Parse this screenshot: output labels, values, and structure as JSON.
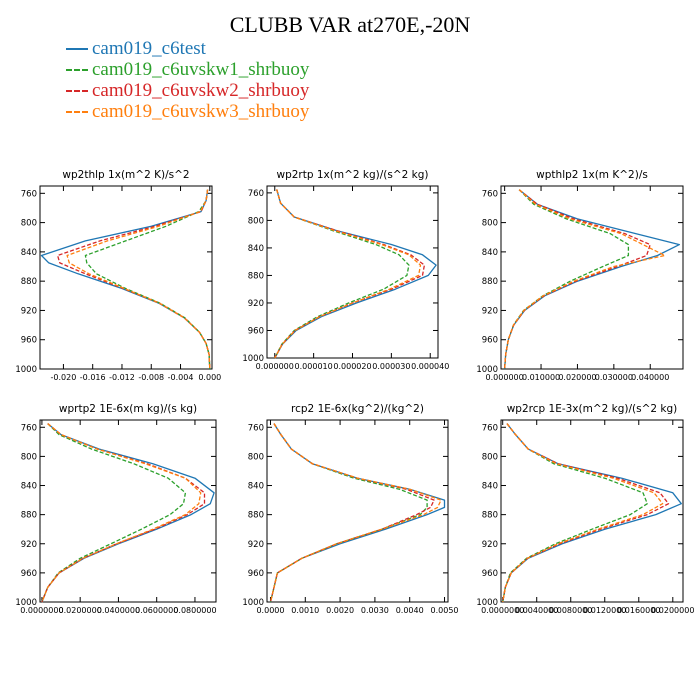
{
  "figure": {
    "title": "CLUBB VAR at270E,-20N"
  },
  "legend": [
    {
      "label": "cam019_c6test",
      "color": "#1f77b4",
      "dash": "solid"
    },
    {
      "label": "cam019_c6uvskw1_shrbuoy",
      "color": "#2ca02c",
      "dash": "dashed"
    },
    {
      "label": "cam019_c6uvskw2_shrbuoy",
      "color": "#d62728",
      "dash": "dashed"
    },
    {
      "label": "cam019_c6uvskw3_shrbuoy",
      "color": "#ff7f0e",
      "dash": "dashed"
    }
  ],
  "chart_data": [
    {
      "type": "line",
      "title": "wp2thlp   1x(m^2 K)/s^2",
      "ylim": [
        1000,
        750
      ],
      "yticks": [
        760,
        800,
        840,
        880,
        920,
        960,
        1000
      ],
      "ytick_labels": [
        "760",
        "800",
        "840",
        "880",
        "920",
        "960",
        "1000"
      ],
      "xlim": [
        -0.0232,
        0.0003
      ],
      "xticks": [
        -0.02,
        -0.016,
        -0.012,
        -0.008,
        -0.004,
        0.0
      ],
      "xtick_labels": [
        "-0.020",
        "-0.016",
        "-0.012",
        "-0.008",
        "-0.004",
        "0.000"
      ],
      "y": [
        755,
        770,
        785,
        805,
        825,
        845,
        855,
        870,
        890,
        910,
        930,
        950,
        965,
        980,
        1000
      ],
      "series": [
        {
          "name": "cam019_c6test",
          "values": [
            -0.0003,
            -0.0005,
            -0.0012,
            -0.008,
            -0.017,
            -0.023,
            -0.022,
            -0.018,
            -0.012,
            -0.007,
            -0.0035,
            -0.0014,
            -0.0005,
            -0.0001,
            0
          ]
        },
        {
          "name": "cam019_c6uvskw1_shrbuoy",
          "values": [
            -0.0003,
            -0.0005,
            -0.0015,
            -0.006,
            -0.0115,
            -0.017,
            -0.0168,
            -0.0155,
            -0.0115,
            -0.0068,
            -0.0034,
            -0.0014,
            -0.0005,
            -0.0001,
            0
          ]
        },
        {
          "name": "cam019_c6uvskw2_shrbuoy",
          "values": [
            -0.0003,
            -0.0005,
            -0.0012,
            -0.0075,
            -0.015,
            -0.0208,
            -0.0205,
            -0.017,
            -0.0118,
            -0.0069,
            -0.0035,
            -0.0014,
            -0.0005,
            -0.0001,
            0
          ]
        },
        {
          "name": "cam019_c6uvskw3_shrbuoy",
          "values": [
            -0.0003,
            -0.0005,
            -0.0013,
            -0.007,
            -0.014,
            -0.0195,
            -0.0192,
            -0.0165,
            -0.0117,
            -0.0069,
            -0.0035,
            -0.0014,
            -0.0005,
            -0.0001,
            0
          ]
        }
      ]
    },
    {
      "type": "line",
      "title": "wp2rtp   1x(m^2 kg)/(s^2 kg)",
      "ylim": [
        1000,
        750
      ],
      "yticks": [
        760,
        800,
        840,
        880,
        920,
        960,
        1000
      ],
      "ytick_labels": [
        "760",
        "800",
        "840",
        "880",
        "920",
        "960",
        "1000"
      ],
      "xlim": [
        -2e-06,
        4.2e-05
      ],
      "xticks": [
        0,
        1e-05,
        2e-05,
        3e-05,
        4e-05
      ],
      "xtick_labels": [
        "0.000000",
        "0.000010",
        "0.000020",
        "0.000030",
        "0.000040"
      ],
      "y": [
        755,
        775,
        795,
        815,
        835,
        850,
        865,
        880,
        900,
        920,
        940,
        960,
        980,
        1000
      ],
      "series": [
        {
          "name": "cam019_c6test",
          "values": [
            5e-07,
            1.5e-06,
            5e-06,
            1.6e-05,
            3e-05,
            3.8e-05,
            4.15e-05,
            3.95e-05,
            3.1e-05,
            2.1e-05,
            1.2e-05,
            5.5e-06,
            2e-06,
            0
          ]
        },
        {
          "name": "cam019_c6uvskw1_shrbuoy",
          "values": [
            5e-07,
            1.5e-06,
            5e-06,
            1.5e-05,
            2.6e-05,
            3.2e-05,
            3.45e-05,
            3.4e-05,
            2.8e-05,
            1.9e-05,
            1.1e-05,
            5e-06,
            1.8e-06,
            0
          ]
        },
        {
          "name": "cam019_c6uvskw2_shrbuoy",
          "values": [
            5e-07,
            1.5e-06,
            5e-06,
            1.6e-05,
            2.8e-05,
            3.5e-05,
            3.85e-05,
            3.8e-05,
            3e-05,
            2e-05,
            1.15e-05,
            5.2e-06,
            1.9e-06,
            0
          ]
        },
        {
          "name": "cam019_c6uvskw3_shrbuoy",
          "values": [
            5e-07,
            1.5e-06,
            5e-06,
            1.55e-05,
            2.75e-05,
            3.45e-05,
            3.75e-05,
            3.7e-05,
            2.95e-05,
            2e-05,
            1.15e-05,
            5.2e-06,
            1.9e-06,
            0
          ]
        }
      ]
    },
    {
      "type": "line",
      "title": "wpthlp2   1x(m K^2)/s",
      "ylim": [
        1000,
        750
      ],
      "yticks": [
        760,
        800,
        840,
        880,
        920,
        960,
        1000
      ],
      "ytick_labels": [
        "760",
        "800",
        "840",
        "880",
        "920",
        "960",
        "1000"
      ],
      "xlim": [
        -0.001,
        0.049
      ],
      "xticks": [
        0,
        0.01,
        0.02,
        0.03,
        0.04
      ],
      "xtick_labels": [
        "0.000000",
        "0.010000",
        "0.020000",
        "0.030000",
        "0.040000"
      ],
      "y": [
        755,
        775,
        795,
        815,
        830,
        845,
        860,
        880,
        900,
        920,
        940,
        960,
        980,
        1000
      ],
      "series": [
        {
          "name": "cam019_c6test",
          "values": [
            0.004,
            0.009,
            0.02,
            0.036,
            0.048,
            0.042,
            0.032,
            0.02,
            0.011,
            0.0055,
            0.0025,
            0.001,
            0.0003,
            0
          ]
        },
        {
          "name": "cam019_c6uvskw1_shrbuoy",
          "values": [
            0.004,
            0.008,
            0.017,
            0.029,
            0.034,
            0.034,
            0.027,
            0.018,
            0.0105,
            0.0052,
            0.0024,
            0.001,
            0.0003,
            0
          ]
        },
        {
          "name": "cam019_c6uvskw2_shrbuoy",
          "values": [
            0.004,
            0.009,
            0.019,
            0.033,
            0.04,
            0.039,
            0.031,
            0.0195,
            0.0108,
            0.0054,
            0.0025,
            0.001,
            0.0003,
            0
          ]
        },
        {
          "name": "cam019_c6uvskw3_shrbuoy",
          "values": [
            0.004,
            0.0085,
            0.018,
            0.032,
            0.038,
            0.044,
            0.03,
            0.019,
            0.0106,
            0.0053,
            0.0024,
            0.001,
            0.0003,
            0
          ]
        }
      ]
    },
    {
      "type": "line",
      "title": "wprtp2   1E-6x(m kg)/(s kg)",
      "ylim": [
        1000,
        750
      ],
      "yticks": [
        760,
        800,
        840,
        880,
        920,
        960,
        1000
      ],
      "ytick_labels": [
        "760",
        "800",
        "840",
        "880",
        "920",
        "960",
        "1000"
      ],
      "xlim": [
        -0.001,
        0.091
      ],
      "xticks": [
        0,
        0.02,
        0.04,
        0.06,
        0.08
      ],
      "xtick_labels": [
        "0.0000000",
        "0.0200000",
        "0.0400000",
        "0.0600000",
        "0.0800000"
      ],
      "y": [
        755,
        770,
        790,
        810,
        830,
        850,
        865,
        880,
        900,
        920,
        940,
        960,
        980,
        1000
      ],
      "series": [
        {
          "name": "cam019_c6test",
          "values": [
            0.003,
            0.01,
            0.03,
            0.058,
            0.08,
            0.09,
            0.088,
            0.078,
            0.06,
            0.04,
            0.022,
            0.009,
            0.003,
            0
          ]
        },
        {
          "name": "cam019_c6uvskw1_shrbuoy",
          "values": [
            0.003,
            0.009,
            0.026,
            0.048,
            0.066,
            0.075,
            0.074,
            0.067,
            0.052,
            0.036,
            0.02,
            0.0085,
            0.003,
            0
          ]
        },
        {
          "name": "cam019_c6uvskw2_shrbuoy",
          "values": [
            0.003,
            0.01,
            0.029,
            0.055,
            0.075,
            0.085,
            0.085,
            0.076,
            0.059,
            0.039,
            0.0215,
            0.009,
            0.003,
            0
          ]
        },
        {
          "name": "cam019_c6uvskw3_shrbuoy",
          "values": [
            0.003,
            0.01,
            0.029,
            0.054,
            0.075,
            0.083,
            0.082,
            0.075,
            0.058,
            0.039,
            0.0215,
            0.009,
            0.003,
            0
          ]
        }
      ]
    },
    {
      "type": "line",
      "title": "rcp2   1E-6x(kg^2)/(kg^2)",
      "ylim": [
        1000,
        750
      ],
      "yticks": [
        760,
        800,
        840,
        880,
        920,
        960,
        1000
      ],
      "ytick_labels": [
        "760",
        "800",
        "840",
        "880",
        "920",
        "960",
        "1000"
      ],
      "xlim": [
        -0.0001,
        0.0051
      ],
      "xticks": [
        0,
        0.001,
        0.002,
        0.003,
        0.004,
        0.005
      ],
      "xtick_labels": [
        "0.0000",
        "0.0010",
        "0.0020",
        "0.0030",
        "0.0040",
        "0.0050"
      ],
      "y": [
        755,
        770,
        790,
        810,
        830,
        845,
        860,
        870,
        880,
        900,
        920,
        940,
        960,
        980,
        1000
      ],
      "series": [
        {
          "name": "cam019_c6test",
          "values": [
            0.0001,
            0.0003,
            0.0006,
            0.0012,
            0.0025,
            0.004,
            0.005,
            0.005,
            0.0045,
            0.0033,
            0.002,
            0.0009,
            0.0002,
            0.0001,
            0
          ]
        },
        {
          "name": "cam019_c6uvskw1_shrbuoy",
          "values": [
            0.0001,
            0.0003,
            0.0006,
            0.0012,
            0.0024,
            0.0037,
            0.0045,
            0.0045,
            0.0043,
            0.0032,
            0.0019,
            0.0009,
            0.0002,
            0.0001,
            0
          ]
        },
        {
          "name": "cam019_c6uvskw2_shrbuoy",
          "values": [
            0.0001,
            0.0003,
            0.0006,
            0.0012,
            0.0025,
            0.0039,
            0.0047,
            0.0046,
            0.0042,
            0.0032,
            0.0019,
            0.0009,
            0.0002,
            0.0001,
            0
          ]
        },
        {
          "name": "cam019_c6uvskw3_shrbuoy",
          "values": [
            0.0001,
            0.0003,
            0.0006,
            0.0012,
            0.0025,
            0.004,
            0.0049,
            0.0048,
            0.0044,
            0.0032,
            0.0019,
            0.0009,
            0.0002,
            0.0001,
            0
          ]
        }
      ]
    },
    {
      "type": "line",
      "title": "wp2rcp   1E-3x(m^2 kg)/(s^2 kg)",
      "ylim": [
        1000,
        750
      ],
      "yticks": [
        760,
        800,
        840,
        880,
        920,
        960,
        1000
      ],
      "ytick_labels": [
        "760",
        "800",
        "840",
        "880",
        "920",
        "960",
        "1000"
      ],
      "xlim": [
        -0.0002,
        0.0212
      ],
      "xticks": [
        0,
        0.004,
        0.008,
        0.012,
        0.016,
        0.02
      ],
      "xtick_labels": [
        "0.0000000",
        "0.0040000",
        "0.0080000",
        "0.0120000",
        "0.0160000",
        "0.0200000"
      ],
      "y": [
        755,
        770,
        790,
        810,
        830,
        850,
        865,
        880,
        900,
        920,
        940,
        960,
        980,
        1000
      ],
      "series": [
        {
          "name": "cam019_c6test",
          "values": [
            0.0005,
            0.0015,
            0.003,
            0.0065,
            0.014,
            0.02,
            0.021,
            0.018,
            0.012,
            0.007,
            0.003,
            0.001,
            0.0003,
            0
          ]
        },
        {
          "name": "cam019_c6uvskw1_shrbuoy",
          "values": [
            0.0005,
            0.0015,
            0.003,
            0.006,
            0.012,
            0.0165,
            0.017,
            0.015,
            0.0105,
            0.0062,
            0.0028,
            0.0009,
            0.0003,
            0
          ]
        },
        {
          "name": "cam019_c6uvskw2_shrbuoy",
          "values": [
            0.0005,
            0.0015,
            0.003,
            0.0065,
            0.0135,
            0.0185,
            0.0195,
            0.017,
            0.0115,
            0.0067,
            0.0029,
            0.001,
            0.0003,
            0
          ]
        },
        {
          "name": "cam019_c6uvskw3_shrbuoy",
          "values": [
            0.0005,
            0.0015,
            0.003,
            0.0063,
            0.013,
            0.0178,
            0.0188,
            0.0165,
            0.0112,
            0.0065,
            0.0029,
            0.001,
            0.0003,
            0
          ]
        }
      ]
    }
  ]
}
